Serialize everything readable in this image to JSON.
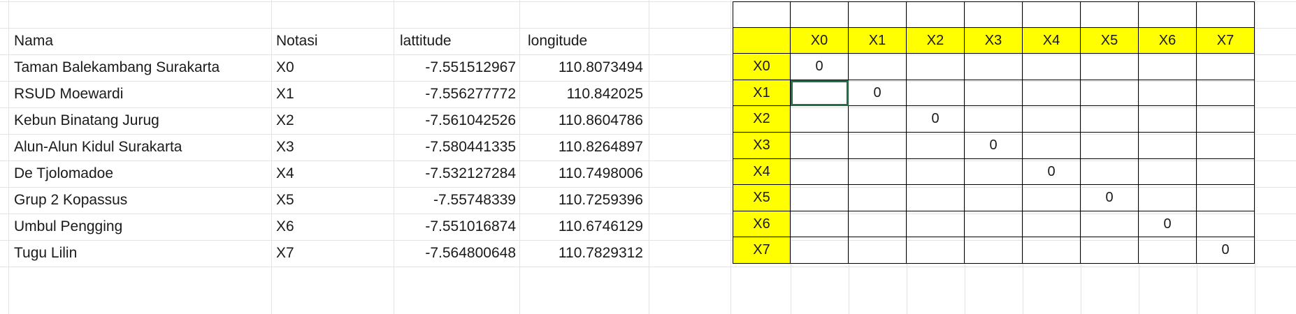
{
  "table": {
    "headers": [
      "Nama",
      "Notasi",
      "lattitude",
      "longitude"
    ],
    "rows": [
      {
        "nama": "Taman Balekambang Surakarta",
        "notasi": "X0",
        "lat": "-7.551512967",
        "lon": "110.8073494"
      },
      {
        "nama": "RSUD Moewardi",
        "notasi": "X1",
        "lat": "-7.556277772",
        "lon": "110.842025"
      },
      {
        "nama": "Kebun Binatang Jurug",
        "notasi": "X2",
        "lat": "-7.561042526",
        "lon": "110.8604786"
      },
      {
        "nama": "Alun-Alun Kidul Surakarta",
        "notasi": "X3",
        "lat": "-7.580441335",
        "lon": "110.8264897"
      },
      {
        "nama": "De Tjolomadoe",
        "notasi": "X4",
        "lat": "-7.532127284",
        "lon": "110.7498006"
      },
      {
        "nama": "Grup 2 Kopassus",
        "notasi": "X5",
        "lat": "-7.55748339",
        "lon": "110.7259396"
      },
      {
        "nama": "Umbul Pengging",
        "notasi": "X6",
        "lat": "-7.551016874",
        "lon": "110.6746129"
      },
      {
        "nama": "Tugu Lilin",
        "notasi": "X7",
        "lat": "-7.564800648",
        "lon": "110.7829312"
      }
    ]
  },
  "matrix": {
    "labels": [
      "X0",
      "X1",
      "X2",
      "X3",
      "X4",
      "X5",
      "X6",
      "X7"
    ],
    "diagonal_value": "0",
    "selected_cell": {
      "row": 1,
      "col": 0
    },
    "header_color": "#ffff00",
    "selection_color": "#1e7145"
  }
}
